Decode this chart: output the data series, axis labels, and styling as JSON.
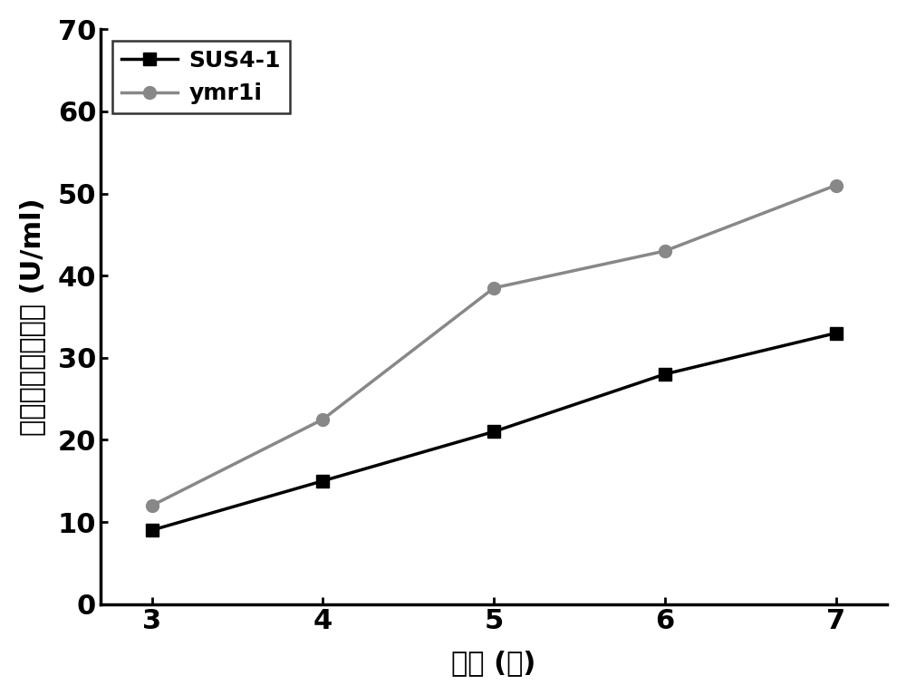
{
  "x": [
    3,
    4,
    5,
    6,
    7
  ],
  "sus4_y": [
    9,
    15,
    21,
    28,
    33
  ],
  "ymr1i_y": [
    12,
    22.5,
    38.5,
    43,
    51
  ],
  "sus4_color": "#000000",
  "ymr1i_color": "#888888",
  "sus4_label": "SUS4-1",
  "ymr1i_label": "ymr1i",
  "xlabel": "时间 (天)",
  "ylabel": "内切纤维素酶酶活 (U/ml)",
  "xlim": [
    2.7,
    7.3
  ],
  "ylim": [
    0,
    70
  ],
  "yticks": [
    0,
    10,
    20,
    30,
    40,
    50,
    60,
    70
  ],
  "xticks": [
    3,
    4,
    5,
    6,
    7
  ],
  "linewidth": 2.5,
  "markersize": 10,
  "label_fontsize": 22,
  "tick_fontsize": 22,
  "legend_fontsize": 18
}
